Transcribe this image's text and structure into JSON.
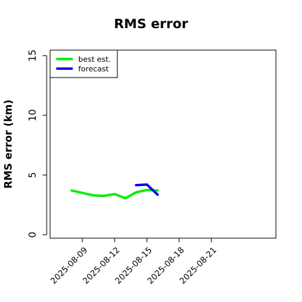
{
  "chart_data": {
    "type": "line",
    "title": "RMS error",
    "xlabel": "",
    "ylabel": "RMS error (km)",
    "ylim": [
      0,
      15
    ],
    "yticks": [
      0,
      5,
      10,
      15
    ],
    "xlim": [
      "2025-08-06",
      "2025-08-27"
    ],
    "xticks": [
      "2025-08-09",
      "2025-08-12",
      "2025-08-15",
      "2025-08-18",
      "2025-08-21"
    ],
    "grid": false,
    "legend_position": "top-left",
    "series": [
      {
        "name": "best est.",
        "color": "#00ee00",
        "x": [
          "2025-08-08",
          "2025-08-09",
          "2025-08-10",
          "2025-08-11",
          "2025-08-12",
          "2025-08-13",
          "2025-08-14",
          "2025-08-15",
          "2025-08-16"
        ],
        "y": [
          3.7,
          3.5,
          3.3,
          3.25,
          3.4,
          3.05,
          3.55,
          3.75,
          3.7
        ]
      },
      {
        "name": "forecast",
        "color": "#0000ee",
        "x": [
          "2025-08-14",
          "2025-08-15",
          "2025-08-16"
        ],
        "y": [
          4.15,
          4.2,
          3.35
        ]
      }
    ]
  }
}
